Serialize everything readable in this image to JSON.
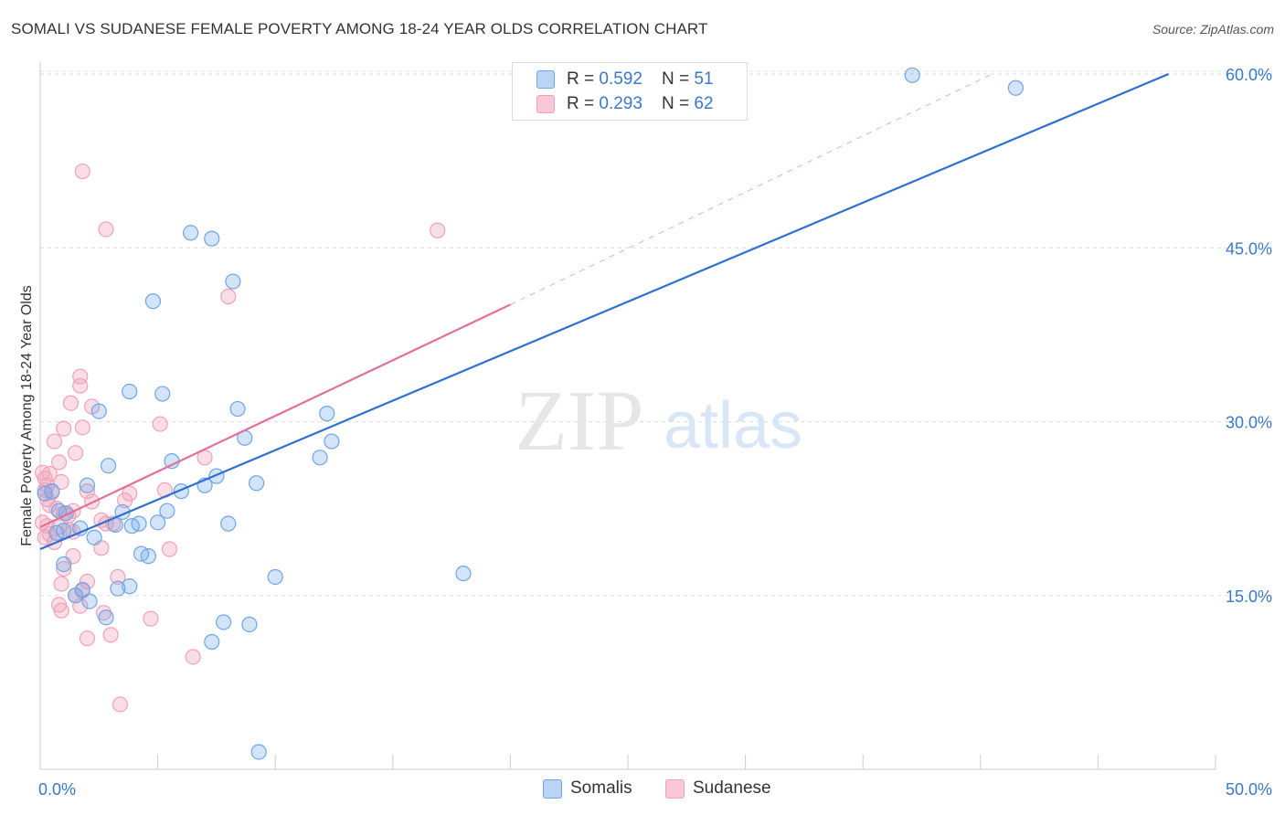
{
  "header": {
    "title": "SOMALI VS SUDANESE FEMALE POVERTY AMONG 18-24 YEAR OLDS CORRELATION CHART",
    "source": "Source: ZipAtlas.com"
  },
  "watermark": {
    "zip": "ZIP",
    "atlas": "atlas"
  },
  "legend": {
    "rows": [
      {
        "r_label": "R = ",
        "r_value": "0.592",
        "n_label": "N = ",
        "n_value": "51"
      },
      {
        "r_label": "R = ",
        "r_value": "0.293",
        "n_label": "N = ",
        "n_value": "62"
      }
    ]
  },
  "chart_data": {
    "type": "scatter",
    "title": "SOMALI VS SUDANESE FEMALE POVERTY AMONG 18-24 YEAR OLDS CORRELATION CHART",
    "ylabel": "Female Poverty Among 18-24 Year Olds",
    "xlabel": "",
    "xlim": [
      0,
      50
    ],
    "ylim": [
      0,
      61.5
    ],
    "x_tick_labels": [
      "0.0%",
      "50.0%"
    ],
    "y_tick_labels": [
      "15.0%",
      "30.0%",
      "45.0%",
      "60.0%"
    ],
    "y_ticks": [
      15,
      30,
      45,
      60
    ],
    "grid": "horizontal dashed",
    "legend_placement": "top-center",
    "colors": {
      "somalis": "#6ea6e8",
      "sudanese": "#f2a0b8",
      "somalis_line": "#2f6fcf",
      "sudanese_line": "#e0709a"
    },
    "series": [
      {
        "name": "Somalis",
        "r": 0.592,
        "n": 51,
        "trend": {
          "x": [
            0,
            48
          ],
          "y": [
            19.0,
            60.0
          ]
        },
        "points": [
          [
            37.1,
            59.9
          ],
          [
            41.5,
            58.8
          ],
          [
            6.4,
            46.3
          ],
          [
            7.3,
            45.8
          ],
          [
            8.2,
            42.1
          ],
          [
            4.8,
            40.4
          ],
          [
            3.8,
            32.6
          ],
          [
            5.2,
            32.4
          ],
          [
            2.5,
            30.9
          ],
          [
            8.4,
            31.1
          ],
          [
            12.2,
            30.7
          ],
          [
            8.7,
            28.6
          ],
          [
            12.4,
            28.3
          ],
          [
            11.9,
            26.9
          ],
          [
            5.6,
            26.6
          ],
          [
            2.9,
            26.2
          ],
          [
            7.5,
            25.3
          ],
          [
            2.0,
            24.5
          ],
          [
            7.0,
            24.5
          ],
          [
            9.2,
            24.7
          ],
          [
            0.5,
            24.0
          ],
          [
            6.0,
            24.0
          ],
          [
            0.2,
            23.8
          ],
          [
            0.8,
            22.3
          ],
          [
            3.5,
            22.2
          ],
          [
            5.4,
            22.3
          ],
          [
            1.1,
            22.1
          ],
          [
            4.2,
            21.2
          ],
          [
            5.0,
            21.3
          ],
          [
            3.2,
            21.1
          ],
          [
            3.9,
            21.0
          ],
          [
            8.0,
            21.2
          ],
          [
            1.7,
            20.8
          ],
          [
            1.0,
            20.6
          ],
          [
            0.7,
            20.4
          ],
          [
            2.3,
            20.0
          ],
          [
            4.3,
            18.6
          ],
          [
            4.6,
            18.4
          ],
          [
            1.0,
            17.7
          ],
          [
            10.0,
            16.6
          ],
          [
            18.0,
            16.9
          ],
          [
            3.8,
            15.8
          ],
          [
            3.3,
            15.6
          ],
          [
            1.8,
            15.5
          ],
          [
            1.5,
            15.0
          ],
          [
            2.1,
            14.5
          ],
          [
            2.8,
            13.1
          ],
          [
            7.8,
            12.7
          ],
          [
            8.9,
            12.5
          ],
          [
            7.3,
            11.0
          ],
          [
            9.3,
            1.5
          ]
        ]
      },
      {
        "name": "Sudanese",
        "r": 0.293,
        "n": 62,
        "trend": {
          "x": [
            0,
            20
          ],
          "y": [
            20.9,
            40.1
          ]
        },
        "trend_dashed": {
          "x": [
            20,
            40.5
          ],
          "y": [
            40.1,
            60.0
          ]
        },
        "points": [
          [
            1.8,
            51.6
          ],
          [
            2.8,
            46.6
          ],
          [
            16.9,
            46.5
          ],
          [
            8.0,
            40.8
          ],
          [
            1.7,
            33.9
          ],
          [
            1.7,
            33.1
          ],
          [
            1.3,
            31.6
          ],
          [
            2.2,
            31.3
          ],
          [
            5.1,
            29.8
          ],
          [
            1.0,
            29.4
          ],
          [
            1.8,
            29.5
          ],
          [
            0.6,
            28.3
          ],
          [
            1.5,
            27.3
          ],
          [
            7.0,
            26.9
          ],
          [
            0.8,
            26.5
          ],
          [
            0.1,
            25.6
          ],
          [
            0.4,
            25.5
          ],
          [
            0.2,
            25.1
          ],
          [
            0.9,
            24.8
          ],
          [
            0.3,
            24.5
          ],
          [
            0.2,
            24.1
          ],
          [
            0.5,
            23.9
          ],
          [
            5.3,
            24.1
          ],
          [
            3.8,
            23.8
          ],
          [
            2.0,
            24.0
          ],
          [
            0.3,
            23.3
          ],
          [
            3.6,
            23.2
          ],
          [
            2.2,
            23.1
          ],
          [
            0.4,
            22.8
          ],
          [
            0.7,
            22.5
          ],
          [
            1.4,
            22.3
          ],
          [
            1.0,
            22.1
          ],
          [
            1.2,
            21.9
          ],
          [
            2.6,
            21.5
          ],
          [
            2.8,
            21.2
          ],
          [
            3.1,
            21.2
          ],
          [
            0.1,
            21.3
          ],
          [
            0.3,
            21.0
          ],
          [
            0.8,
            20.9
          ],
          [
            1.2,
            20.7
          ],
          [
            1.4,
            20.5
          ],
          [
            0.4,
            20.3
          ],
          [
            0.2,
            20.0
          ],
          [
            0.6,
            19.6
          ],
          [
            2.6,
            19.1
          ],
          [
            5.5,
            19.0
          ],
          [
            1.4,
            18.4
          ],
          [
            1.0,
            17.3
          ],
          [
            3.3,
            16.6
          ],
          [
            2.0,
            16.2
          ],
          [
            0.9,
            16.0
          ],
          [
            1.8,
            15.4
          ],
          [
            1.5,
            15.0
          ],
          [
            1.7,
            14.1
          ],
          [
            0.9,
            13.7
          ],
          [
            2.7,
            13.5
          ],
          [
            4.7,
            13.0
          ],
          [
            2.0,
            11.3
          ],
          [
            3.0,
            11.6
          ],
          [
            6.5,
            9.7
          ],
          [
            3.4,
            5.6
          ],
          [
            0.8,
            14.2
          ]
        ]
      }
    ]
  },
  "bottom_legend": {
    "items": [
      "Somalis",
      "Sudanese"
    ]
  }
}
